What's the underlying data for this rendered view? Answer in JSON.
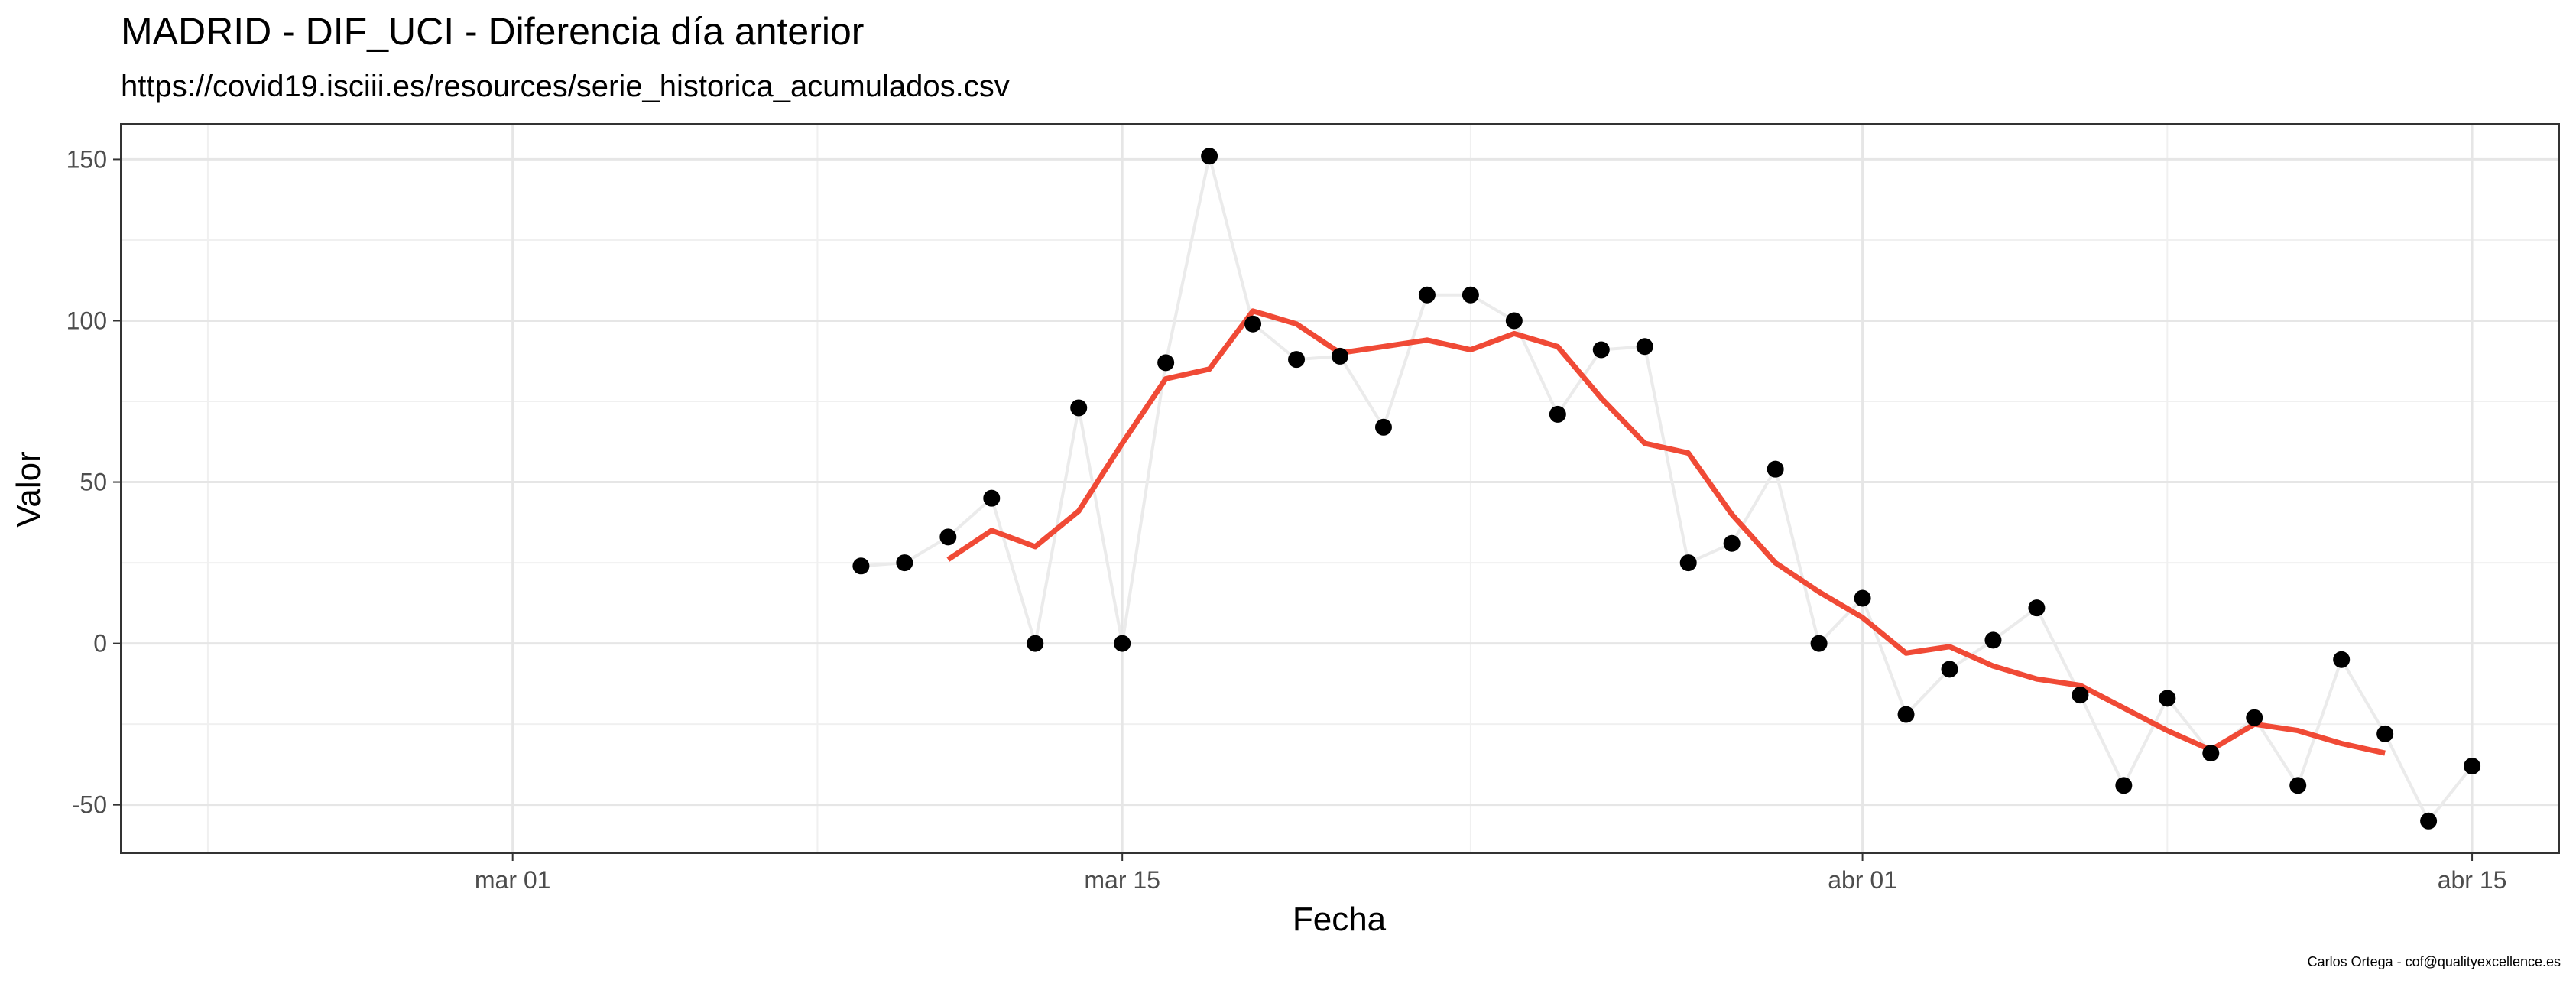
{
  "chart_data": {
    "type": "line",
    "title": "MADRID - DIF_UCI - Diferencia día anterior",
    "subtitle": "https://covid19.isciii.es/resources/serie_historica_acumulados.csv",
    "xlabel": "Fecha",
    "ylabel": "Valor",
    "caption": "Carlos Ortega - cof@qualityexcellence.es",
    "x_tick_labels": [
      "mar 01",
      "mar 15",
      "abr 01",
      "abr 15"
    ],
    "y_tick_labels": [
      "-50",
      "0",
      "50",
      "100",
      "150"
    ],
    "ylim": [
      -65,
      161
    ],
    "grid": true,
    "series": [
      {
        "kind": "points",
        "color": "#000000",
        "connector_color": "#ebebeb",
        "values": [
          {
            "date": "2020-03-09",
            "value": 24
          },
          {
            "date": "2020-03-10",
            "value": 25
          },
          {
            "date": "2020-03-11",
            "value": 33
          },
          {
            "date": "2020-03-12",
            "value": 45
          },
          {
            "date": "2020-03-13",
            "value": 0
          },
          {
            "date": "2020-03-14",
            "value": 73
          },
          {
            "date": "2020-03-15",
            "value": 0
          },
          {
            "date": "2020-03-16",
            "value": 87
          },
          {
            "date": "2020-03-17",
            "value": 151
          },
          {
            "date": "2020-03-18",
            "value": 99
          },
          {
            "date": "2020-03-19",
            "value": 88
          },
          {
            "date": "2020-03-20",
            "value": 89
          },
          {
            "date": "2020-03-21",
            "value": 67
          },
          {
            "date": "2020-03-22",
            "value": 108
          },
          {
            "date": "2020-03-23",
            "value": 108
          },
          {
            "date": "2020-03-24",
            "value": 100
          },
          {
            "date": "2020-03-25",
            "value": 71
          },
          {
            "date": "2020-03-26",
            "value": 91
          },
          {
            "date": "2020-03-27",
            "value": 92
          },
          {
            "date": "2020-03-28",
            "value": 25
          },
          {
            "date": "2020-03-29",
            "value": 31
          },
          {
            "date": "2020-03-30",
            "value": 54
          },
          {
            "date": "2020-03-31",
            "value": 0
          },
          {
            "date": "2020-04-01",
            "value": 14
          },
          {
            "date": "2020-04-02",
            "value": -22
          },
          {
            "date": "2020-04-03",
            "value": -8
          },
          {
            "date": "2020-04-04",
            "value": 1
          },
          {
            "date": "2020-04-05",
            "value": 11
          },
          {
            "date": "2020-04-06",
            "value": -16
          },
          {
            "date": "2020-04-07",
            "value": -44
          },
          {
            "date": "2020-04-08",
            "value": -17
          },
          {
            "date": "2020-04-09",
            "value": -34
          },
          {
            "date": "2020-04-10",
            "value": -23
          },
          {
            "date": "2020-04-11",
            "value": -44
          },
          {
            "date": "2020-04-12",
            "value": -5
          },
          {
            "date": "2020-04-13",
            "value": -28
          },
          {
            "date": "2020-04-14",
            "value": -55
          },
          {
            "date": "2020-04-15",
            "value": -38
          }
        ]
      },
      {
        "kind": "line",
        "color": "#f04a36",
        "values": [
          {
            "date": "2020-03-11",
            "value": 26
          },
          {
            "date": "2020-03-12",
            "value": 35
          },
          {
            "date": "2020-03-13",
            "value": 30
          },
          {
            "date": "2020-03-14",
            "value": 41
          },
          {
            "date": "2020-03-15",
            "value": 62
          },
          {
            "date": "2020-03-16",
            "value": 82
          },
          {
            "date": "2020-03-17",
            "value": 85
          },
          {
            "date": "2020-03-18",
            "value": 103
          },
          {
            "date": "2020-03-19",
            "value": 99
          },
          {
            "date": "2020-03-20",
            "value": 90
          },
          {
            "date": "2020-03-21",
            "value": 92
          },
          {
            "date": "2020-03-22",
            "value": 94
          },
          {
            "date": "2020-03-23",
            "value": 91
          },
          {
            "date": "2020-03-24",
            "value": 96
          },
          {
            "date": "2020-03-25",
            "value": 92
          },
          {
            "date": "2020-03-26",
            "value": 76
          },
          {
            "date": "2020-03-27",
            "value": 62
          },
          {
            "date": "2020-03-28",
            "value": 59
          },
          {
            "date": "2020-03-29",
            "value": 40
          },
          {
            "date": "2020-03-30",
            "value": 25
          },
          {
            "date": "2020-03-31",
            "value": 16
          },
          {
            "date": "2020-04-01",
            "value": 8
          },
          {
            "date": "2020-04-02",
            "value": -3
          },
          {
            "date": "2020-04-03",
            "value": -1
          },
          {
            "date": "2020-04-04",
            "value": -7
          },
          {
            "date": "2020-04-05",
            "value": -11
          },
          {
            "date": "2020-04-06",
            "value": -13
          },
          {
            "date": "2020-04-07",
            "value": -20
          },
          {
            "date": "2020-04-08",
            "value": -27
          },
          {
            "date": "2020-04-09",
            "value": -33
          },
          {
            "date": "2020-04-10",
            "value": -25
          },
          {
            "date": "2020-04-11",
            "value": -27
          },
          {
            "date": "2020-04-12",
            "value": -31
          },
          {
            "date": "2020-04-13",
            "value": -34
          }
        ]
      }
    ]
  }
}
